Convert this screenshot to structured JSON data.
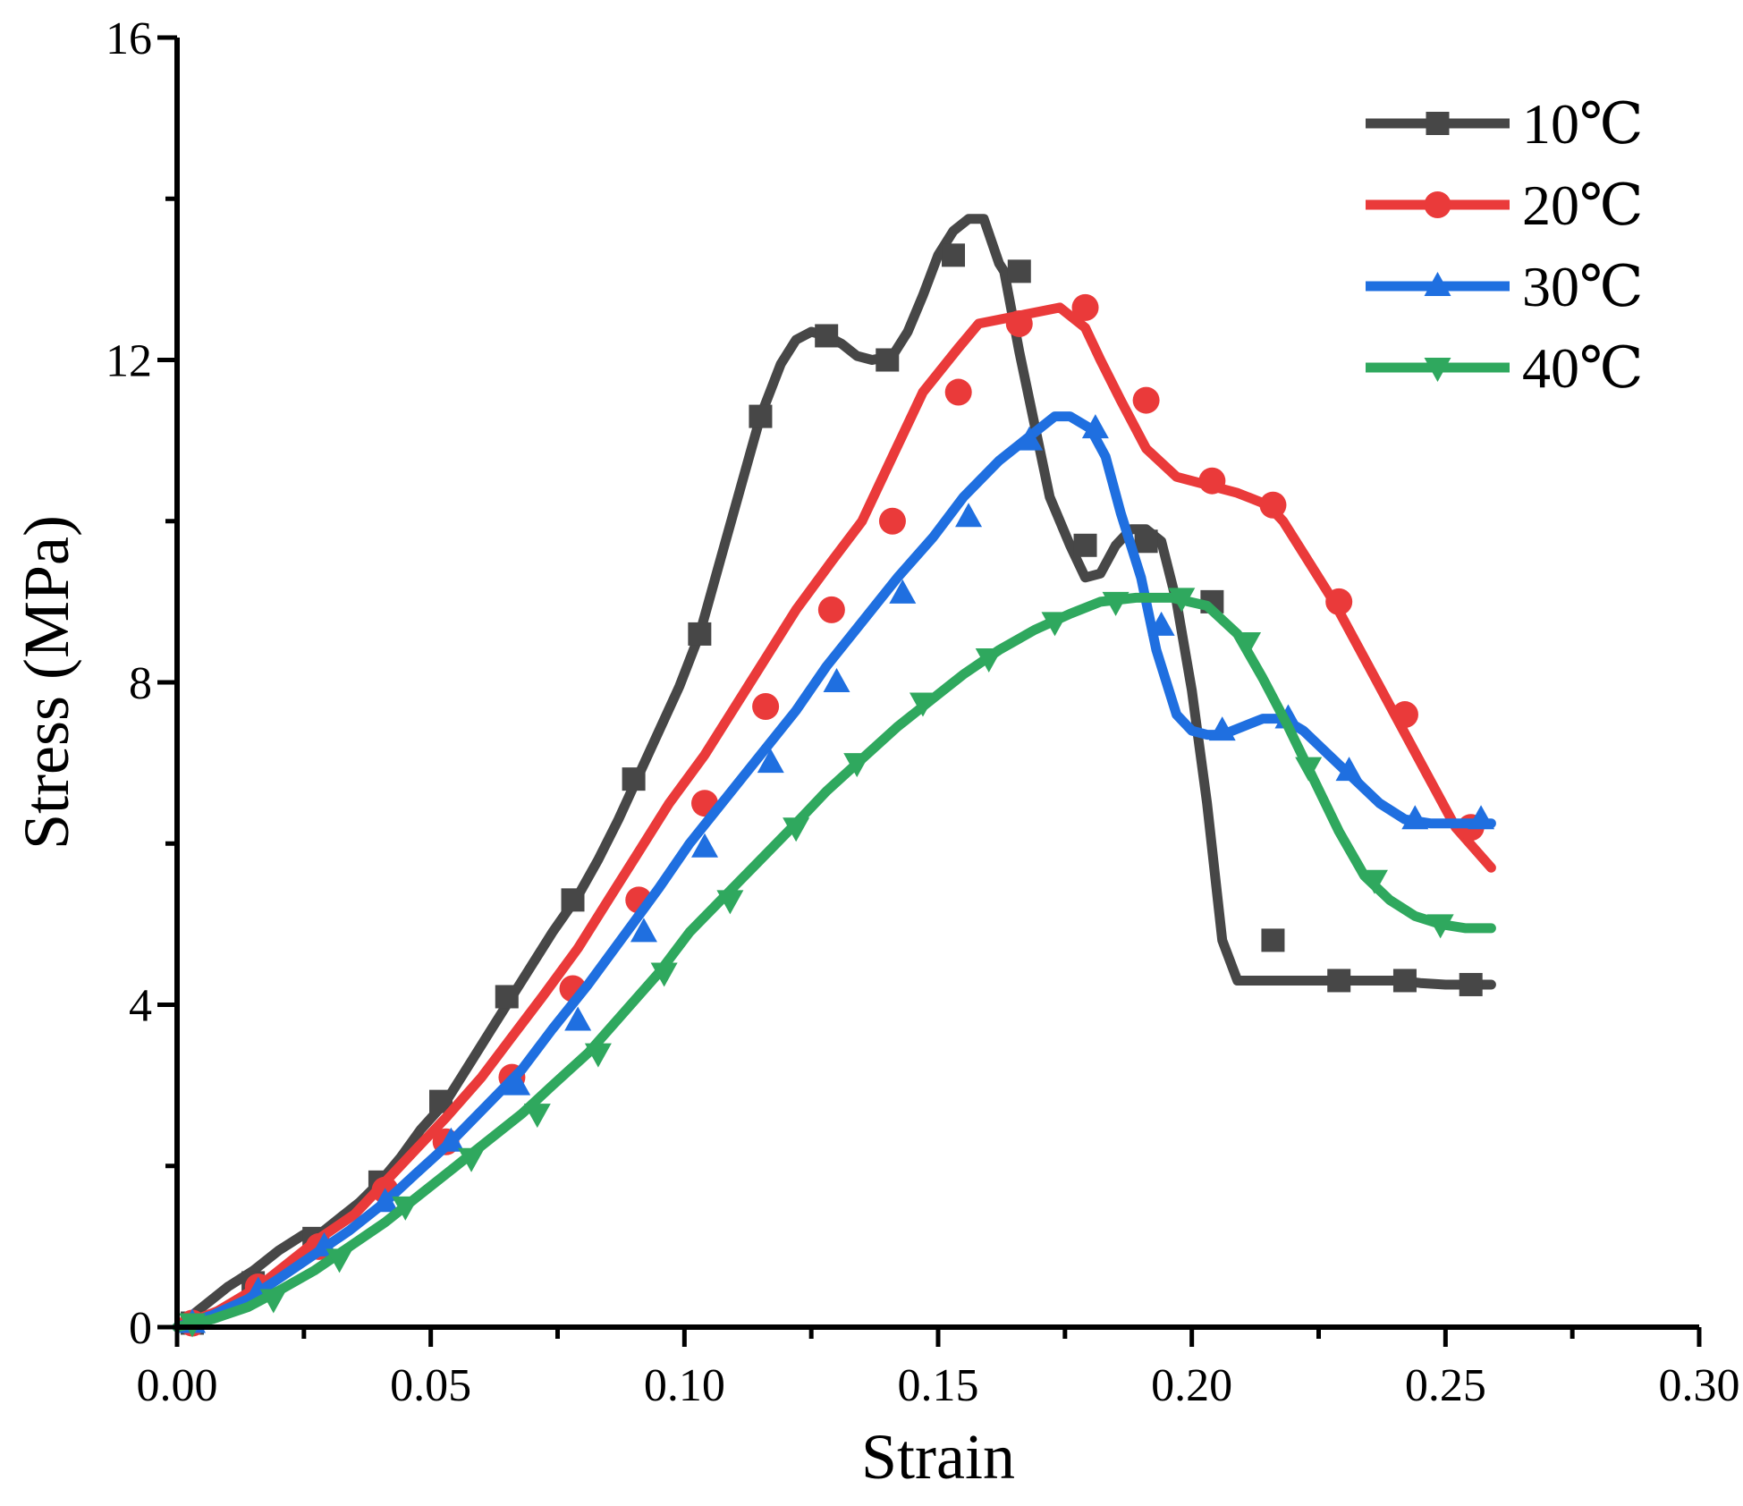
{
  "chart_data": {
    "type": "line",
    "title": "",
    "xlabel": "Strain",
    "ylabel": "Stress (MPa)",
    "xlim": [
      0,
      0.3
    ],
    "ylim": [
      0,
      16
    ],
    "xticks": [
      "0.00",
      "0.05",
      "0.10",
      "0.15",
      "0.20",
      "0.25",
      "0.30"
    ],
    "yticks": [
      "0",
      "4",
      "8",
      "12",
      "16"
    ],
    "legend_position": "top-right",
    "series": [
      {
        "name": "10℃",
        "color": "#474747",
        "marker": "square",
        "x": [
          0,
          0.005,
          0.01,
          0.015,
          0.02,
          0.025,
          0.028,
          0.032,
          0.036,
          0.04,
          0.044,
          0.048,
          0.053,
          0.058,
          0.062,
          0.066,
          0.07,
          0.074,
          0.079,
          0.083,
          0.087,
          0.091,
          0.095,
          0.099,
          0.103,
          0.107,
          0.111,
          0.115,
          0.119,
          0.122,
          0.125,
          0.128,
          0.131,
          0.134,
          0.137,
          0.141,
          0.144,
          0.147,
          0.15,
          0.153,
          0.156,
          0.159,
          0.162,
          0.163,
          0.166,
          0.169,
          0.172,
          0.176,
          0.179,
          0.182,
          0.185,
          0.188,
          0.191,
          0.194,
          0.197,
          0.2,
          0.203,
          0.206,
          0.209,
          0.212,
          0.215,
          0.218,
          0.222,
          0.227,
          0.231,
          0.236,
          0.241,
          0.245,
          0.25,
          0.255,
          0.259
        ],
        "y": [
          0,
          0.25,
          0.5,
          0.7,
          0.95,
          1.15,
          1.15,
          1.35,
          1.55,
          1.8,
          2.1,
          2.45,
          2.8,
          3.3,
          3.7,
          4.1,
          4.5,
          4.9,
          5.35,
          5.8,
          6.3,
          6.85,
          7.4,
          7.95,
          8.6,
          9.5,
          10.4,
          11.3,
          11.95,
          12.25,
          12.35,
          12.3,
          12.2,
          12.05,
          12.0,
          12.05,
          12.35,
          12.8,
          13.3,
          13.6,
          13.75,
          13.75,
          13.2,
          13.1,
          12.1,
          11.2,
          10.3,
          9.7,
          9.3,
          9.35,
          9.7,
          9.9,
          9.9,
          9.75,
          9.0,
          7.9,
          6.5,
          4.8,
          4.3,
          4.3,
          4.3,
          4.3,
          4.3,
          4.3,
          4.3,
          4.3,
          4.3,
          4.27,
          4.25,
          4.25,
          4.25
        ],
        "markers": [
          [
            0.003,
            0.05
          ],
          [
            0.015,
            0.55
          ],
          [
            0.027,
            1.1
          ],
          [
            0.04,
            1.8
          ],
          [
            0.052,
            2.8
          ],
          [
            0.065,
            4.1
          ],
          [
            0.078,
            5.3
          ],
          [
            0.09,
            6.8
          ],
          [
            0.103,
            8.6
          ],
          [
            0.115,
            11.3
          ],
          [
            0.128,
            12.3
          ],
          [
            0.14,
            12.0
          ],
          [
            0.153,
            13.3
          ],
          [
            0.166,
            13.1
          ],
          [
            0.179,
            9.7
          ],
          [
            0.191,
            9.75
          ],
          [
            0.204,
            9.0
          ],
          [
            0.216,
            4.8
          ],
          [
            0.229,
            4.3
          ],
          [
            0.242,
            4.3
          ],
          [
            0.255,
            4.25
          ]
        ]
      },
      {
        "name": "20℃",
        "color": "#EA3A3A",
        "marker": "circle",
        "x": [
          0,
          0.008,
          0.016,
          0.022,
          0.028,
          0.035,
          0.041,
          0.047,
          0.053,
          0.06,
          0.066,
          0.072,
          0.079,
          0.085,
          0.091,
          0.097,
          0.104,
          0.11,
          0.116,
          0.122,
          0.129,
          0.135,
          0.141,
          0.147,
          0.154,
          0.158,
          0.162,
          0.166,
          0.17,
          0.174,
          0.179,
          0.182,
          0.186,
          0.191,
          0.197,
          0.203,
          0.209,
          0.215,
          0.218,
          0.222,
          0.228,
          0.234,
          0.24,
          0.246,
          0.252,
          0.259
        ],
        "y": [
          0,
          0.2,
          0.5,
          0.8,
          1.1,
          1.4,
          1.8,
          2.2,
          2.6,
          3.1,
          3.6,
          4.1,
          4.7,
          5.3,
          5.9,
          6.5,
          7.1,
          7.7,
          8.3,
          8.9,
          9.5,
          10.0,
          10.8,
          11.6,
          12.15,
          12.45,
          12.5,
          12.55,
          12.6,
          12.65,
          12.4,
          12.0,
          11.5,
          10.9,
          10.55,
          10.45,
          10.35,
          10.2,
          10.0,
          9.6,
          9.0,
          8.3,
          7.6,
          6.9,
          6.2,
          5.7
        ],
        "markers": [
          [
            0.003,
            0.05
          ],
          [
            0.016,
            0.5
          ],
          [
            0.028,
            1.0
          ],
          [
            0.041,
            1.7
          ],
          [
            0.053,
            2.3
          ],
          [
            0.066,
            3.1
          ],
          [
            0.078,
            4.2
          ],
          [
            0.091,
            5.3
          ],
          [
            0.104,
            6.5
          ],
          [
            0.116,
            7.7
          ],
          [
            0.129,
            8.9
          ],
          [
            0.141,
            10.0
          ],
          [
            0.154,
            11.6
          ],
          [
            0.166,
            12.45
          ],
          [
            0.179,
            12.65
          ],
          [
            0.191,
            11.5
          ],
          [
            0.204,
            10.5
          ],
          [
            0.216,
            10.2
          ],
          [
            0.229,
            9.0
          ],
          [
            0.242,
            7.6
          ],
          [
            0.255,
            6.2
          ]
        ]
      },
      {
        "name": "30℃",
        "color": "#1F6FE0",
        "marker": "triangle-up",
        "x": [
          0,
          0.007,
          0.014,
          0.02,
          0.027,
          0.034,
          0.041,
          0.047,
          0.054,
          0.061,
          0.068,
          0.074,
          0.081,
          0.088,
          0.095,
          0.101,
          0.108,
          0.115,
          0.122,
          0.128,
          0.135,
          0.142,
          0.149,
          0.155,
          0.162,
          0.169,
          0.173,
          0.176,
          0.18,
          0.183,
          0.186,
          0.19,
          0.193,
          0.197,
          0.2,
          0.203,
          0.206,
          0.21,
          0.214,
          0.218,
          0.222,
          0.227,
          0.232,
          0.237,
          0.242,
          0.247,
          0.252,
          0.259
        ],
        "y": [
          0,
          0.15,
          0.35,
          0.6,
          0.9,
          1.2,
          1.55,
          1.9,
          2.3,
          2.75,
          3.2,
          3.7,
          4.25,
          4.85,
          5.45,
          6.0,
          6.55,
          7.1,
          7.65,
          8.2,
          8.75,
          9.3,
          9.8,
          10.3,
          10.75,
          11.1,
          11.3,
          11.3,
          11.15,
          10.8,
          10.1,
          9.3,
          8.4,
          7.6,
          7.4,
          7.35,
          7.35,
          7.45,
          7.55,
          7.55,
          7.4,
          7.1,
          6.8,
          6.5,
          6.3,
          6.25,
          6.25,
          6.25
        ],
        "markers": [
          [
            0.003,
            0.05
          ],
          [
            0.016,
            0.45
          ],
          [
            0.029,
            1.0
          ],
          [
            0.041,
            1.55
          ],
          [
            0.054,
            2.3
          ],
          [
            0.067,
            3.0
          ],
          [
            0.079,
            3.8
          ],
          [
            0.092,
            4.9
          ],
          [
            0.104,
            5.95
          ],
          [
            0.117,
            7.0
          ],
          [
            0.13,
            8.0
          ],
          [
            0.143,
            9.1
          ],
          [
            0.156,
            10.05
          ],
          [
            0.168,
            11.0
          ],
          [
            0.181,
            11.15
          ],
          [
            0.194,
            8.7
          ],
          [
            0.206,
            7.4
          ],
          [
            0.219,
            7.55
          ],
          [
            0.231,
            6.9
          ],
          [
            0.244,
            6.3
          ],
          [
            0.257,
            6.3
          ]
        ]
      },
      {
        "name": "40℃",
        "color": "#2FA85E",
        "marker": "triangle-down",
        "x": [
          0,
          0.007,
          0.014,
          0.02,
          0.027,
          0.034,
          0.041,
          0.047,
          0.054,
          0.061,
          0.068,
          0.074,
          0.081,
          0.088,
          0.095,
          0.101,
          0.108,
          0.115,
          0.122,
          0.128,
          0.135,
          0.142,
          0.149,
          0.155,
          0.162,
          0.169,
          0.176,
          0.182,
          0.189,
          0.196,
          0.203,
          0.209,
          0.214,
          0.219,
          0.224,
          0.229,
          0.234,
          0.239,
          0.244,
          0.249,
          0.254,
          0.259
        ],
        "y": [
          0,
          0.1,
          0.25,
          0.45,
          0.7,
          1.0,
          1.3,
          1.6,
          1.95,
          2.3,
          2.65,
          3.0,
          3.4,
          3.9,
          4.4,
          4.9,
          5.35,
          5.8,
          6.25,
          6.65,
          7.05,
          7.45,
          7.8,
          8.1,
          8.4,
          8.65,
          8.85,
          9.0,
          9.05,
          9.05,
          8.95,
          8.6,
          8.05,
          7.45,
          6.8,
          6.15,
          5.6,
          5.3,
          5.1,
          5.0,
          4.95,
          4.95
        ],
        "markers": [
          [
            0.003,
            0.05
          ],
          [
            0.019,
            0.35
          ],
          [
            0.032,
            0.85
          ],
          [
            0.045,
            1.5
          ],
          [
            0.058,
            2.1
          ],
          [
            0.071,
            2.65
          ],
          [
            0.083,
            3.4
          ],
          [
            0.096,
            4.4
          ],
          [
            0.109,
            5.3
          ],
          [
            0.122,
            6.2
          ],
          [
            0.134,
            7.0
          ],
          [
            0.147,
            7.75
          ],
          [
            0.16,
            8.3
          ],
          [
            0.173,
            8.75
          ],
          [
            0.185,
            9.0
          ],
          [
            0.198,
            9.05
          ],
          [
            0.211,
            8.5
          ],
          [
            0.223,
            6.95
          ],
          [
            0.236,
            5.55
          ],
          [
            0.249,
            5.0
          ]
        ]
      }
    ]
  }
}
